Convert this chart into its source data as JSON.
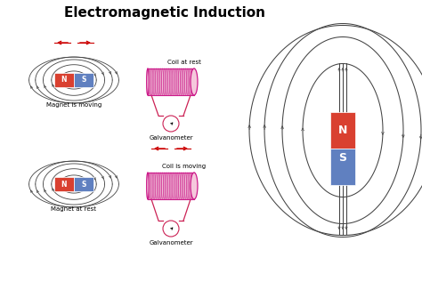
{
  "title": "Electromagnetic Induction",
  "title_fontsize": 11,
  "title_fontweight": "bold",
  "bg_color": "#ffffff",
  "magnet_N_color": "#d94030",
  "magnet_S_color": "#6080c0",
  "coil_color": "#cc1a8a",
  "coil_fill": "#e060a0",
  "circuit_color": "#cc2255",
  "arrow_color": "#cc0000",
  "field_line_color": "#444444",
  "label_fontsize": 5.0,
  "labels": {
    "top_left_caption": "Magnet is moving",
    "top_right_caption": "Coil at rest",
    "top_galv": "Galvanometer",
    "bot_left_caption": "Magnet at rest",
    "bot_right_caption": "Coil is moving",
    "bot_galv": "Galvanometer"
  }
}
